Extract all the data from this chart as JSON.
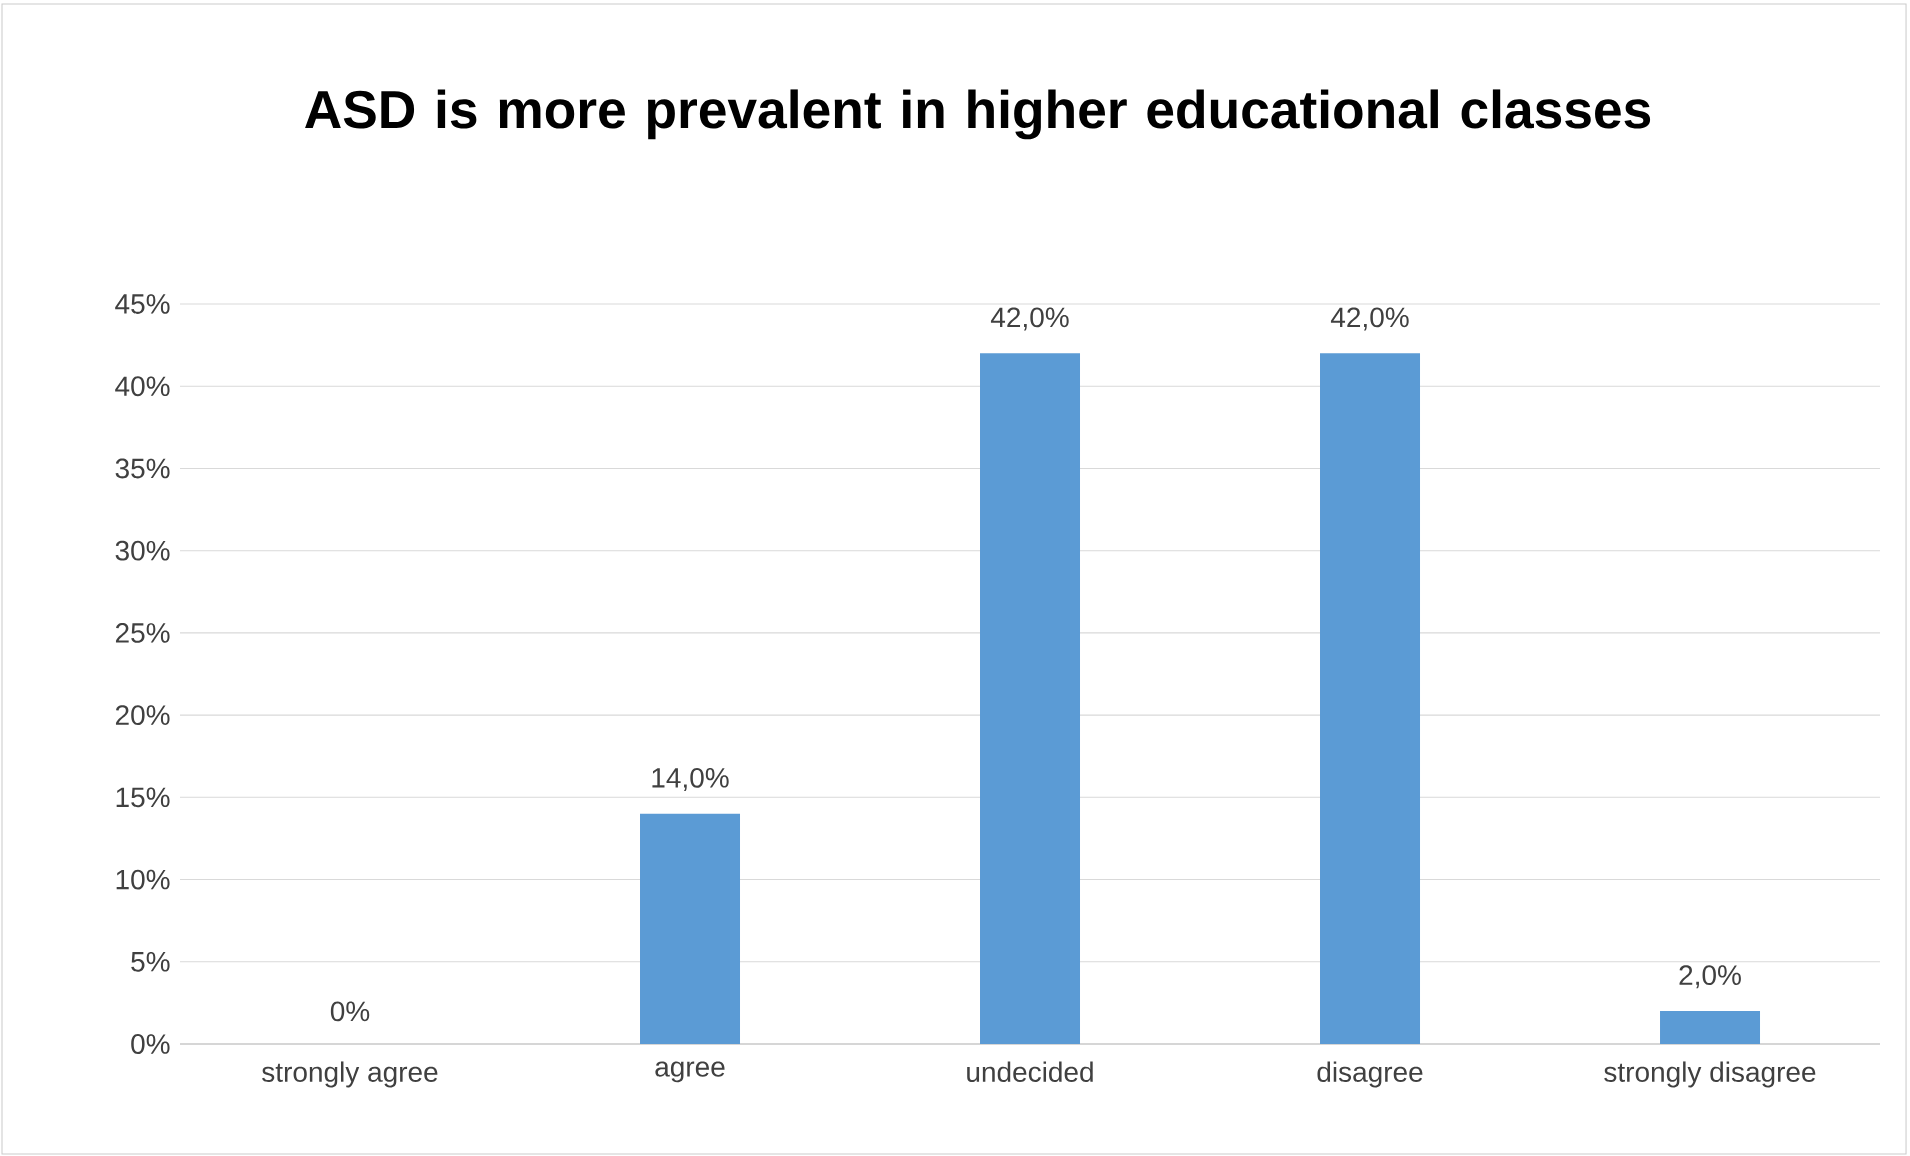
{
  "chart_data": {
    "type": "bar",
    "title": "ASD is more prevalent in higher educational classes",
    "categories": [
      "strongly agree",
      "agree",
      "undecided",
      "disagree",
      "strongly disagree"
    ],
    "values": [
      0,
      14,
      42,
      42,
      2
    ],
    "value_labels": [
      "0%",
      "14,0%",
      "42,0%",
      "42,0%",
      "2,0%"
    ],
    "color": "#5b9bd5",
    "ylim": [
      0,
      45
    ],
    "yticks": [
      {
        "value": 0,
        "label": "0%"
      },
      {
        "value": 5,
        "label": "5%"
      },
      {
        "value": 10,
        "label": "10%"
      },
      {
        "value": 15,
        "label": "15%"
      },
      {
        "value": 20,
        "label": "20%"
      },
      {
        "value": 25,
        "label": "25%"
      },
      {
        "value": 30,
        "label": "30%"
      },
      {
        "value": 35,
        "label": "35%"
      },
      {
        "value": 40,
        "label": "40%"
      },
      {
        "value": 45,
        "label": "45%"
      }
    ],
    "grid": "y"
  }
}
